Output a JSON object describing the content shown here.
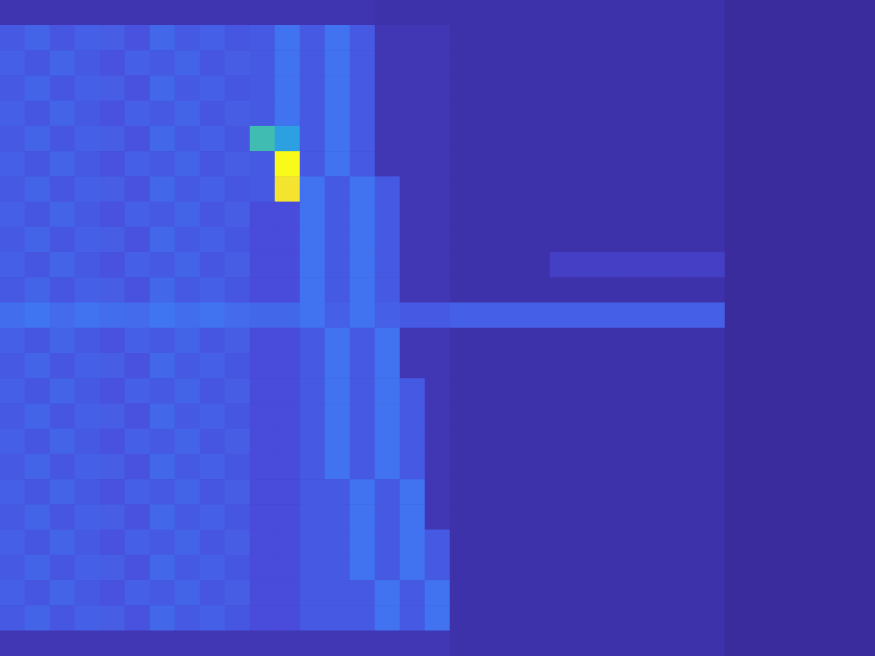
{
  "chart_data": {
    "type": "heatmap",
    "tick_labels": false,
    "grid": false,
    "cells": [
      [
        0.5,
        0.5,
        0.5,
        0.5,
        0.5,
        0.5,
        0.5,
        0.5,
        0.5,
        0.5,
        0.5,
        0.5,
        0.5,
        0.5,
        0.5,
        0.3,
        0.3,
        0.3,
        0.3,
        0.3,
        0.3,
        0.3,
        0.3,
        0.3,
        0.3,
        0.3,
        0.3,
        0.3,
        0.3,
        0,
        0,
        0,
        0,
        0,
        0
      ],
      [
        2.0,
        2.3,
        1.9,
        2.2,
        2.1,
        1.8,
        2.4,
        2.0,
        2.2,
        1.9,
        2.0,
        2.7,
        2.0,
        2.7,
        2.0,
        0.6,
        0.6,
        0.6,
        0.3,
        0.3,
        0.3,
        0.3,
        0.3,
        0.3,
        0.3,
        0.3,
        0.3,
        0.3,
        0.3,
        0,
        0,
        0,
        0,
        0,
        0
      ],
      [
        2.2,
        1.9,
        2.3,
        2.0,
        1.8,
        2.2,
        2.0,
        2.3,
        1.9,
        2.1,
        2.0,
        2.7,
        2.0,
        2.7,
        2.0,
        0.6,
        0.6,
        0.6,
        0.3,
        0.3,
        0.3,
        0.3,
        0.3,
        0.3,
        0.3,
        0.3,
        0.3,
        0.3,
        0.3,
        0,
        0,
        0,
        0,
        0,
        0
      ],
      [
        2.0,
        2.3,
        1.9,
        2.2,
        2.1,
        1.8,
        2.4,
        2.0,
        2.2,
        1.9,
        2.0,
        2.7,
        2.0,
        2.7,
        2.0,
        0.6,
        0.6,
        0.6,
        0.3,
        0.3,
        0.3,
        0.3,
        0.3,
        0.3,
        0.3,
        0.3,
        0.3,
        0.3,
        0.3,
        0,
        0,
        0,
        0,
        0,
        0
      ],
      [
        2.2,
        1.9,
        2.3,
        2.0,
        1.8,
        2.2,
        2.0,
        2.3,
        1.9,
        2.1,
        2.0,
        2.7,
        2.0,
        2.7,
        2.0,
        0.6,
        0.6,
        0.6,
        0.3,
        0.3,
        0.3,
        0.3,
        0.3,
        0.3,
        0.3,
        0.3,
        0.3,
        0.3,
        0.3,
        0,
        0,
        0,
        0,
        0,
        0
      ],
      [
        2.0,
        2.3,
        1.9,
        2.2,
        2.1,
        1.8,
        2.4,
        2.0,
        2.2,
        1.9,
        5,
        4,
        2.0,
        2.7,
        2.0,
        0.6,
        0.6,
        0.6,
        0.3,
        0.3,
        0.3,
        0.3,
        0.3,
        0.3,
        0.3,
        0.3,
        0.3,
        0.3,
        0.3,
        0,
        0,
        0,
        0,
        0,
        0
      ],
      [
        2.2,
        1.9,
        2.3,
        2.0,
        1.8,
        2.2,
        2.0,
        2.3,
        1.9,
        2.1,
        2.0,
        9,
        2.0,
        2.7,
        2.0,
        0.6,
        0.6,
        0.6,
        0.3,
        0.3,
        0.3,
        0.3,
        0.3,
        0.3,
        0.3,
        0.3,
        0.3,
        0.3,
        0.3,
        0,
        0,
        0,
        0,
        0,
        0
      ],
      [
        2.0,
        2.3,
        1.9,
        2.2,
        2.1,
        1.8,
        2.4,
        2.0,
        2.2,
        1.9,
        2.0,
        8,
        2.7,
        2.0,
        2.7,
        2.0,
        0.6,
        0.6,
        0.3,
        0.3,
        0.3,
        0.3,
        0.3,
        0.3,
        0.3,
        0.3,
        0.3,
        0.3,
        0.3,
        0,
        0,
        0,
        0,
        0,
        0
      ],
      [
        2.2,
        1.9,
        2.3,
        2.0,
        1.8,
        2.2,
        2.0,
        2.3,
        1.9,
        2.1,
        1.6,
        1.6,
        2.7,
        2.0,
        2.7,
        2.0,
        0.6,
        0.6,
        0.3,
        0.3,
        0.3,
        0.3,
        0.3,
        0.3,
        0.3,
        0.3,
        0.3,
        0.3,
        0.3,
        0,
        0,
        0,
        0,
        0,
        0
      ],
      [
        2.0,
        2.3,
        1.9,
        2.2,
        2.1,
        1.8,
        2.4,
        2.0,
        2.2,
        1.9,
        1.6,
        1.6,
        2.7,
        2.0,
        2.7,
        2.0,
        0.6,
        0.6,
        0.3,
        0.3,
        0.3,
        0.3,
        0.3,
        0.3,
        0.3,
        0.3,
        0.3,
        0.3,
        0.3,
        0,
        0,
        0,
        0,
        0,
        0
      ],
      [
        2.2,
        1.9,
        2.3,
        2.0,
        1.8,
        2.2,
        2.0,
        2.3,
        1.9,
        2.1,
        1.6,
        1.6,
        2.7,
        2.0,
        2.7,
        2.0,
        0.6,
        0.6,
        0.3,
        0.3,
        0.3,
        0.3,
        1.0,
        1.0,
        1.0,
        1.0,
        1.0,
        1.0,
        1.0,
        0,
        0,
        0,
        0,
        0,
        0
      ],
      [
        2.0,
        2.3,
        1.9,
        2.2,
        2.1,
        1.8,
        2.4,
        2.0,
        2.2,
        1.9,
        1.6,
        1.6,
        2.7,
        2.0,
        2.7,
        2.0,
        0.6,
        0.6,
        0.3,
        0.3,
        0.3,
        0.3,
        0.3,
        0.3,
        0.3,
        0.3,
        0.3,
        0.3,
        0.3,
        0,
        0,
        0,
        0,
        0,
        0
      ],
      [
        2.6,
        2.8,
        2.5,
        2.7,
        2.6,
        2.5,
        2.8,
        2.6,
        2.7,
        2.5,
        2.4,
        2.4,
        2.7,
        2.2,
        2.7,
        2.2,
        2.0,
        2.0,
        2.2,
        2.2,
        2.2,
        2.2,
        2.2,
        2.2,
        2.2,
        2.2,
        2.2,
        2.2,
        2.2,
        0,
        0,
        0,
        0,
        0,
        0
      ],
      [
        2.2,
        1.9,
        2.3,
        2.0,
        1.8,
        2.2,
        2.0,
        2.3,
        1.9,
        2.1,
        1.6,
        1.6,
        2.0,
        2.7,
        2.0,
        2.7,
        0.6,
        0.6,
        0.3,
        0.3,
        0.3,
        0.3,
        0.3,
        0.3,
        0.3,
        0.3,
        0.3,
        0.3,
        0.3,
        0,
        0,
        0,
        0,
        0,
        0
      ],
      [
        2.0,
        2.3,
        1.9,
        2.2,
        2.1,
        1.8,
        2.4,
        2.0,
        2.2,
        1.9,
        1.6,
        1.6,
        2.0,
        2.7,
        2.0,
        2.7,
        0.6,
        0.6,
        0.3,
        0.3,
        0.3,
        0.3,
        0.3,
        0.3,
        0.3,
        0.3,
        0.3,
        0.3,
        0.3,
        0,
        0,
        0,
        0,
        0,
        0
      ],
      [
        2.2,
        1.9,
        2.3,
        2.0,
        1.8,
        2.2,
        2.0,
        2.3,
        1.9,
        2.1,
        1.6,
        1.6,
        2.0,
        2.7,
        2.0,
        2.7,
        2.0,
        0.6,
        0.3,
        0.3,
        0.3,
        0.3,
        0.3,
        0.3,
        0.3,
        0.3,
        0.3,
        0.3,
        0.3,
        0,
        0,
        0,
        0,
        0,
        0
      ],
      [
        2.0,
        2.3,
        1.9,
        2.2,
        2.1,
        1.8,
        2.4,
        2.0,
        2.2,
        1.9,
        1.6,
        1.6,
        2.0,
        2.7,
        2.0,
        2.7,
        2.0,
        0.6,
        0.3,
        0.3,
        0.3,
        0.3,
        0.3,
        0.3,
        0.3,
        0.3,
        0.3,
        0.3,
        0.3,
        0,
        0,
        0,
        0,
        0,
        0
      ],
      [
        2.2,
        1.9,
        2.3,
        2.0,
        1.8,
        2.2,
        2.0,
        2.3,
        1.9,
        2.1,
        1.6,
        1.6,
        2.0,
        2.7,
        2.0,
        2.7,
        2.0,
        0.6,
        0.3,
        0.3,
        0.3,
        0.3,
        0.3,
        0.3,
        0.3,
        0.3,
        0.3,
        0.3,
        0.3,
        0,
        0,
        0,
        0,
        0,
        0
      ],
      [
        2.0,
        2.3,
        1.9,
        2.2,
        2.1,
        1.8,
        2.4,
        2.0,
        2.2,
        1.9,
        1.6,
        1.6,
        2.0,
        2.7,
        2.0,
        2.7,
        2.0,
        0.6,
        0.3,
        0.3,
        0.3,
        0.3,
        0.3,
        0.3,
        0.3,
        0.3,
        0.3,
        0.3,
        0.3,
        0,
        0,
        0,
        0,
        0,
        0
      ],
      [
        2.2,
        1.9,
        2.3,
        2.0,
        1.8,
        2.2,
        2.0,
        2.3,
        1.9,
        2.1,
        1.6,
        1.6,
        2.0,
        2.0,
        2.7,
        2.0,
        2.7,
        0.6,
        0.3,
        0.3,
        0.3,
        0.3,
        0.3,
        0.3,
        0.3,
        0.3,
        0.3,
        0.3,
        0.3,
        0,
        0,
        0,
        0,
        0,
        0
      ],
      [
        2.0,
        2.3,
        1.9,
        2.2,
        2.1,
        1.8,
        2.4,
        2.0,
        2.2,
        1.9,
        1.6,
        1.6,
        2.0,
        2.0,
        2.7,
        2.0,
        2.7,
        0.6,
        0.3,
        0.3,
        0.3,
        0.3,
        0.3,
        0.3,
        0.3,
        0.3,
        0.3,
        0.3,
        0.3,
        0,
        0,
        0,
        0,
        0,
        0
      ],
      [
        2.2,
        1.9,
        2.3,
        2.0,
        1.8,
        2.2,
        2.0,
        2.3,
        1.9,
        2.1,
        1.6,
        1.6,
        2.0,
        2.0,
        2.7,
        2.0,
        2.7,
        2.0,
        0.3,
        0.3,
        0.3,
        0.3,
        0.3,
        0.3,
        0.3,
        0.3,
        0.3,
        0.3,
        0.3,
        0,
        0,
        0,
        0,
        0,
        0
      ],
      [
        2.0,
        2.3,
        1.9,
        2.2,
        2.1,
        1.8,
        2.4,
        2.0,
        2.2,
        1.9,
        1.6,
        1.6,
        2.0,
        2.0,
        2.7,
        2.0,
        2.7,
        2.0,
        0.3,
        0.3,
        0.3,
        0.3,
        0.3,
        0.3,
        0.3,
        0.3,
        0.3,
        0.3,
        0.3,
        0,
        0,
        0,
        0,
        0,
        0
      ],
      [
        2.2,
        1.9,
        2.3,
        2.0,
        1.8,
        2.2,
        2.0,
        2.3,
        1.9,
        2.1,
        1.6,
        1.6,
        2.0,
        2.0,
        2.0,
        2.7,
        2.0,
        2.7,
        0.3,
        0.3,
        0.3,
        0.3,
        0.3,
        0.3,
        0.3,
        0.3,
        0.3,
        0.3,
        0.3,
        0,
        0,
        0,
        0,
        0,
        0
      ],
      [
        2.0,
        2.3,
        1.9,
        2.2,
        2.1,
        1.8,
        2.4,
        2.0,
        2.2,
        1.9,
        1.6,
        1.6,
        2.0,
        2.0,
        2.0,
        2.7,
        2.0,
        2.7,
        0.3,
        0.3,
        0.3,
        0.3,
        0.3,
        0.3,
        0.3,
        0.3,
        0.3,
        0.3,
        0.3,
        0,
        0,
        0,
        0,
        0,
        0
      ],
      [
        0.6,
        0.6,
        0.6,
        0.6,
        0.6,
        0.6,
        0.6,
        0.6,
        0.6,
        0.6,
        0.6,
        0.6,
        0.6,
        0.6,
        0.6,
        0.6,
        0.6,
        0.6,
        0.3,
        0.3,
        0.3,
        0.3,
        0.3,
        0.3,
        0.3,
        0.3,
        0.3,
        0.3,
        0.3,
        0,
        0,
        0,
        0,
        0,
        0
      ]
    ]
  }
}
